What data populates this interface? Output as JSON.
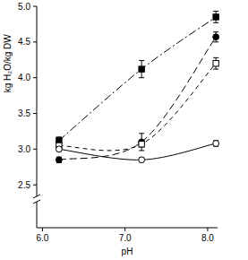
{
  "chart_data": {
    "type": "line",
    "x_label": "pH",
    "y_label": "kg H₂O/kg DW",
    "x": [
      6.2,
      7.2,
      8.1
    ],
    "xlim": [
      5.93,
      8.12
    ],
    "xticks": [
      {
        "value": 6,
        "label": "6.0"
      },
      {
        "value": 7,
        "label": "7.0"
      },
      {
        "value": 8,
        "label": "8.0"
      }
    ],
    "ylim": [
      1.9,
      5.0
    ],
    "yticks": [
      2.5,
      {
        "value": 3,
        "label": "3.0"
      },
      3.5,
      {
        "value": 4,
        "label": "4.0"
      },
      4.5,
      {
        "value": 5,
        "label": "5.0"
      }
    ],
    "grid": false,
    "color": "#000000",
    "series": [
      {
        "marker": "filled-square",
        "line_style": "dashdot",
        "values": [
          3.12,
          4.12,
          4.85
        ],
        "errors": [
          0.05,
          0.12,
          0.08
        ]
      },
      {
        "marker": "filled-circle",
        "line_style": "longdash",
        "values": [
          2.85,
          3.1,
          4.57
        ],
        "errors": [
          0.04,
          0.12,
          0.07
        ]
      },
      {
        "marker": "open-square",
        "line_style": "dashed",
        "values": [
          3.05,
          3.07,
          4.2
        ],
        "errors": [
          0.03,
          0.04,
          0.08
        ]
      },
      {
        "marker": "open-circle",
        "line_style": "solid",
        "values": [
          3.0,
          2.85,
          3.08
        ],
        "errors": [
          0.03,
          0.03,
          0.04
        ]
      }
    ]
  }
}
